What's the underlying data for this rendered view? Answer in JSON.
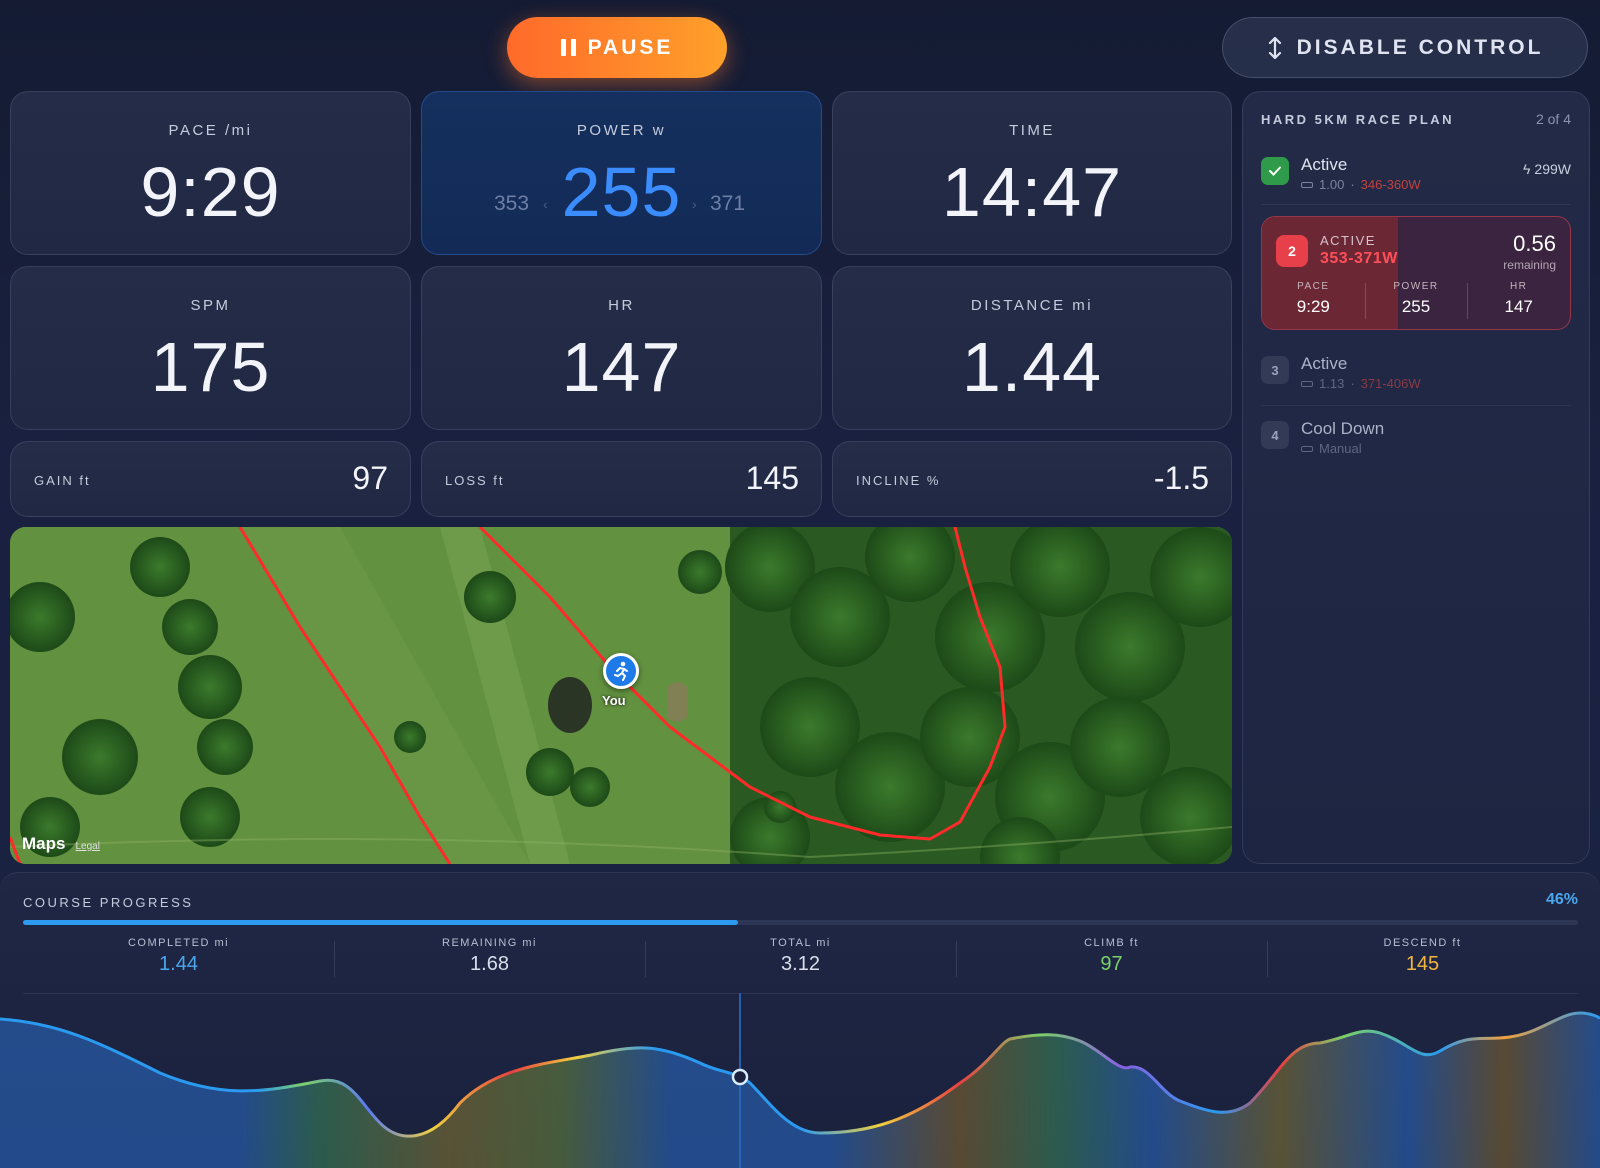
{
  "controls": {
    "pause_label": "PAUSE",
    "disable_label": "DISABLE CONTROL"
  },
  "metrics": {
    "pace": {
      "label": "PACE /mi",
      "value": "9:29"
    },
    "power": {
      "label": "POWER w",
      "value": "255",
      "low": "353",
      "high": "371"
    },
    "time": {
      "label": "TIME",
      "value": "14:47"
    },
    "spm": {
      "label": "SPM",
      "value": "175"
    },
    "hr": {
      "label": "HR",
      "value": "147"
    },
    "distance": {
      "label": "DISTANCE mi",
      "value": "1.44"
    },
    "gain": {
      "label": "GAIN ft",
      "value": "97"
    },
    "loss": {
      "label": "LOSS ft",
      "value": "145"
    },
    "incline": {
      "label": "INCLINE %",
      "value": "-1.5"
    }
  },
  "map": {
    "you_label": "You",
    "logo": "Maps",
    "legal": "Legal"
  },
  "plan": {
    "title": "HARD 5KM RACE PLAN",
    "count": "2 of 4",
    "steps": [
      {
        "num": "1",
        "name": "Active",
        "distance": "1.00",
        "range": "346-360W",
        "avg_power": "299W",
        "state": "done"
      },
      {
        "num": "2",
        "status": "ACTIVE",
        "range": "353-371W",
        "remaining": "0.56",
        "remaining_label": "remaining",
        "progress": 0.44,
        "cols": [
          {
            "label": "PACE",
            "value": "9:29"
          },
          {
            "label": "POWER",
            "value": "255"
          },
          {
            "label": "HR",
            "value": "147"
          }
        ]
      },
      {
        "num": "3",
        "name": "Active",
        "distance": "1.13",
        "range": "371-406W"
      },
      {
        "num": "4",
        "name": "Cool Down",
        "sub": "Manual"
      }
    ]
  },
  "progress": {
    "title": "COURSE PROGRESS",
    "percent_label": "46%",
    "percent": 0.46,
    "stats": [
      {
        "label": "COMPLETED mi",
        "value": "1.44",
        "color": "#4aa7ee"
      },
      {
        "label": "REMAINING mi",
        "value": "1.68",
        "color": "#d9deea"
      },
      {
        "label": "TOTAL mi",
        "value": "3.12",
        "color": "#d9deea"
      },
      {
        "label": "CLIMB ft",
        "value": "97",
        "color": "#7ad06a"
      },
      {
        "label": "DESCEND ft",
        "value": "145",
        "color": "#f2b640"
      }
    ]
  },
  "colors": {
    "accent_orange": "#ff7a2a",
    "accent_blue": "#2d9bf0",
    "alert_red": "#e8404a",
    "route_red": "#ff2a2a"
  }
}
